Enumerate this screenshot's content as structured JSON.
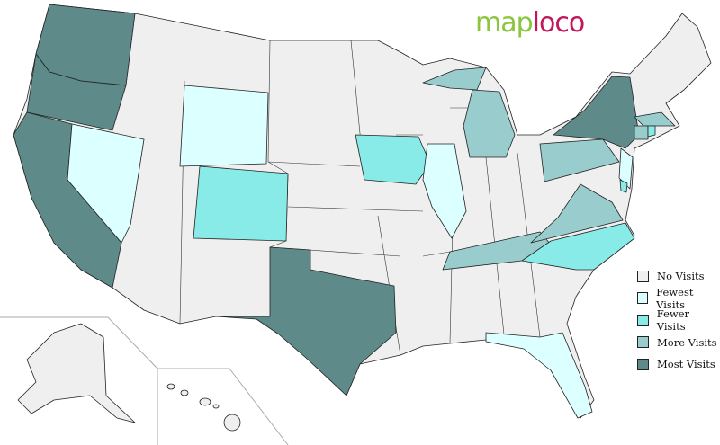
{
  "logo": {
    "part1": "map",
    "part2": "loco"
  },
  "colors": {
    "none": "#efefef",
    "fewest": "#dcffff",
    "fewer": "#88ebe8",
    "more": "#99cccc",
    "most": "#5f8a8a"
  },
  "legend": [
    {
      "key": "none",
      "label": "No Visits"
    },
    {
      "key": "fewest",
      "label": "Fewest Visits"
    },
    {
      "key": "fewer",
      "label": "Fewer Visits"
    },
    {
      "key": "more",
      "label": "More Visits"
    },
    {
      "key": "most",
      "label": "Most Visits"
    }
  ],
  "states": {
    "WA": "most",
    "OR": "most",
    "CA": "most",
    "TX": "most",
    "NY": "most",
    "NV": "fewest",
    "WY": "fewest",
    "IL": "fewest",
    "NJ": "fewest",
    "FL": "fewest",
    "CO": "fewer",
    "IA": "fewer",
    "NC": "fewer",
    "RI": "fewer",
    "DE": "fewer",
    "MI": "more",
    "PA": "more",
    "VA": "more",
    "TN": "more",
    "MA": "more",
    "CT": "more",
    "AK": "none",
    "HI": "none"
  }
}
